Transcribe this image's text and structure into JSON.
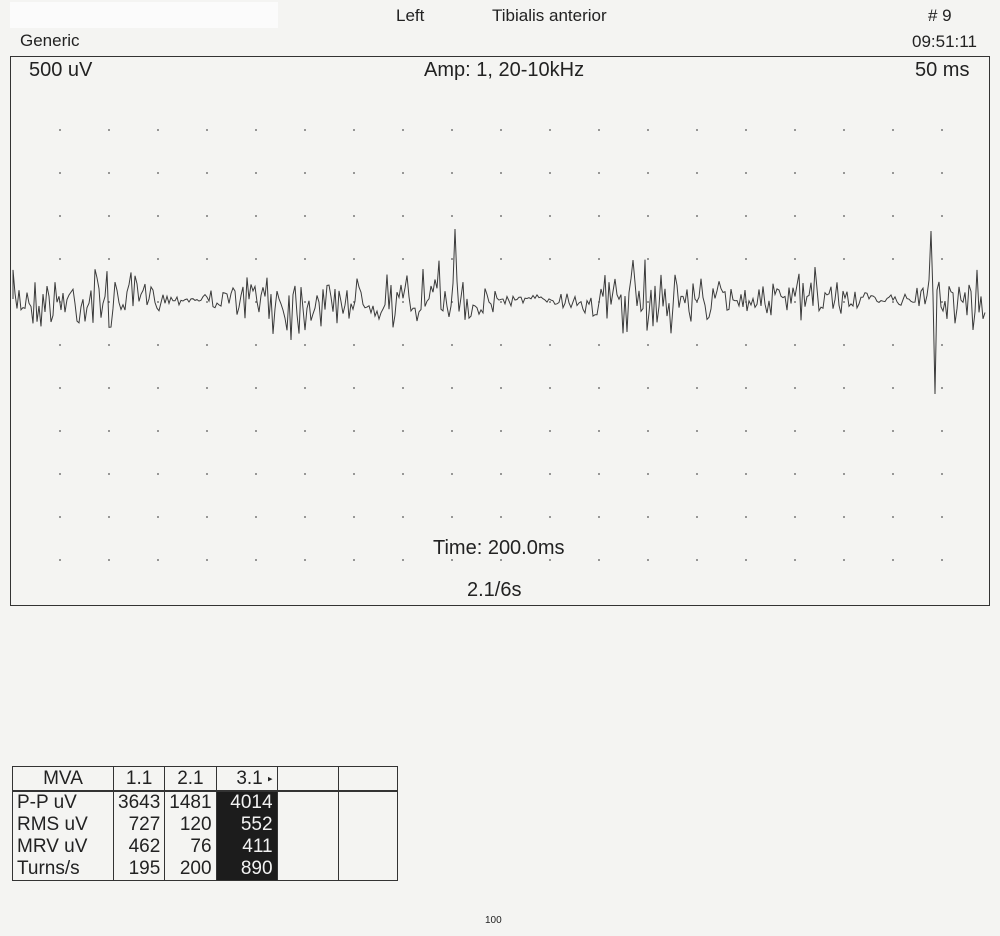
{
  "header": {
    "side": "Left",
    "muscle": "Tibialis anterior",
    "protocol": "Generic",
    "record_number": "# 9",
    "time": "09:51:11"
  },
  "chart_data": {
    "type": "line",
    "title": "Amp: 1, 20-10kHz",
    "amplitude_scale": "500 uV",
    "time_scale": "50 ms",
    "time_label": "Time: 200.0ms",
    "sweep_label": "2.1/6s",
    "grid": "dotted",
    "series": [
      {
        "name": "",
        "description_of_signal": ""
      }
    ]
  },
  "table": {
    "headers": [
      "MVA",
      "1.1",
      "2.1",
      "3.1",
      "",
      ""
    ],
    "selected_marker": "▸",
    "rows": [
      {
        "label": "P-P    uV",
        "values": [
          "3643",
          "1481",
          "4014"
        ]
      },
      {
        "label": "RMS   uV",
        "values": [
          "727",
          "120",
          "552"
        ]
      },
      {
        "label": "MRV   uV",
        "values": [
          "462",
          "76",
          "411"
        ]
      },
      {
        "label": "Turns/s",
        "values": [
          "195",
          "200",
          "890"
        ]
      }
    ]
  },
  "footer": {
    "page_number": "100"
  }
}
